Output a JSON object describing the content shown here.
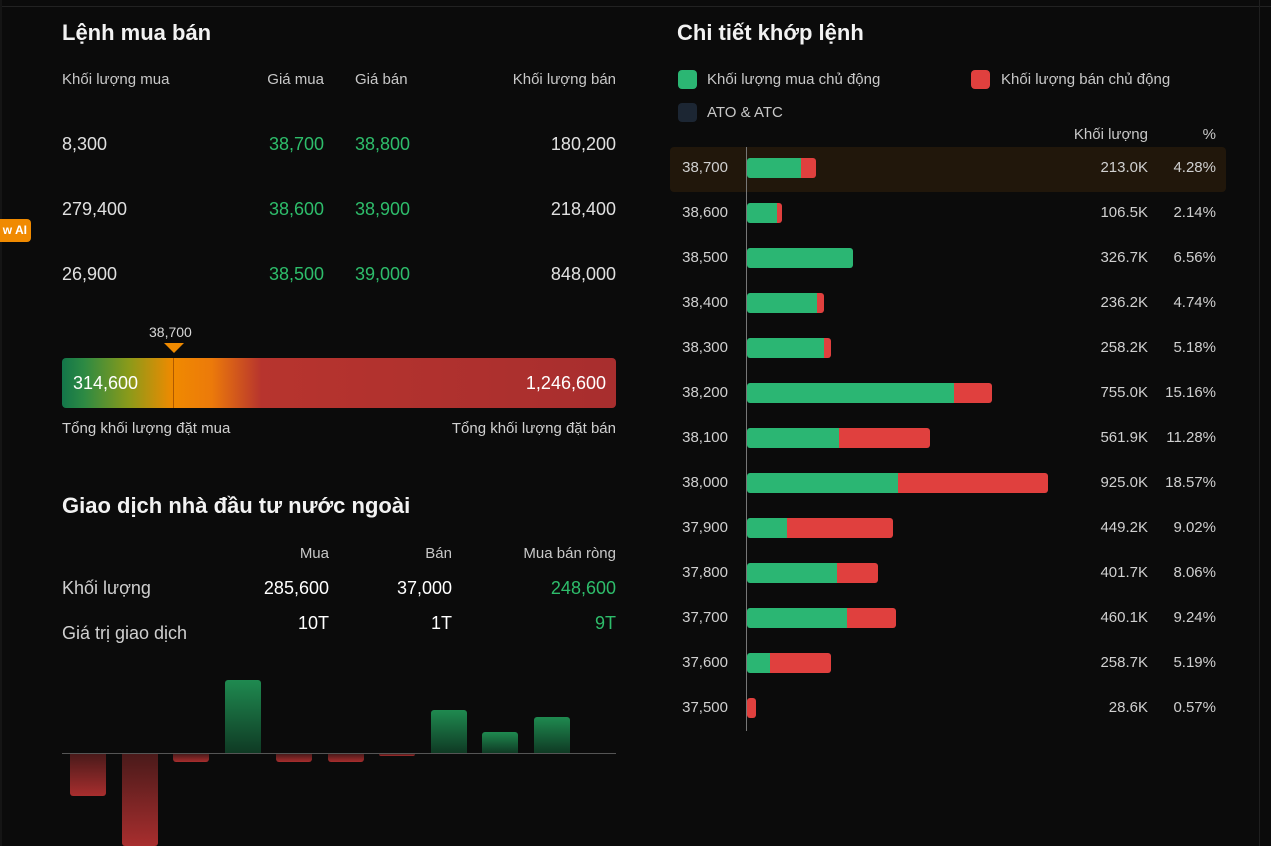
{
  "ai_badge": "w AI",
  "order_book": {
    "title": "Lệnh mua bán",
    "headers": {
      "buy_volume": "Khối lượng mua",
      "buy_price": "Giá mua",
      "sell_price": "Giá bán",
      "sell_volume": "Khối lượng bán"
    },
    "rows": [
      {
        "buy_volume": "8,300",
        "buy_price": "38,700",
        "sell_price": "38,800",
        "sell_volume": "180,200"
      },
      {
        "buy_volume": "279,400",
        "buy_price": "38,600",
        "sell_price": "38,900",
        "sell_volume": "218,400"
      },
      {
        "buy_volume": "26,900",
        "buy_price": "38,500",
        "sell_price": "39,000",
        "sell_volume": "848,000"
      }
    ],
    "marker_price": "38,700",
    "total_buy": "314,600",
    "total_sell": "1,246,600",
    "total_buy_label": "Tổng khối lượng đặt mua",
    "total_sell_label": "Tổng khối lượng đặt bán"
  },
  "foreign": {
    "title": "Giao dịch nhà đầu tư nước ngoài",
    "headers": {
      "buy": "Mua",
      "sell": "Bán",
      "net": "Mua bán ròng"
    },
    "volume": {
      "label": "Khối lượng",
      "buy": "285,600",
      "sell": "37,000",
      "net": "248,600"
    },
    "value": {
      "label": "Giá trị giao dịch",
      "buy": "10T",
      "sell": "1T",
      "net": "9T"
    },
    "chart_values": [
      -42,
      -92,
      -8,
      73,
      -8,
      -8,
      -2,
      43,
      21,
      36
    ]
  },
  "matched": {
    "title": "Chi tiết khớp lệnh",
    "legend": {
      "buy": "Khối lượng mua chủ động",
      "sell": "Khối lượng bán chủ động",
      "ato": "ATO & ATC"
    },
    "colors": {
      "buy": "#2bb673",
      "sell": "#e0403e",
      "ato": "#1c2633"
    },
    "headers": {
      "volume": "Khối lượng",
      "percent": "%"
    },
    "rows": [
      {
        "price": "38,700",
        "volume": "213.0K",
        "percent": "4.28%",
        "buy": 166,
        "sell": 47
      },
      {
        "price": "38,600",
        "volume": "106.5K",
        "percent": "2.14%",
        "buy": 93,
        "sell": 14
      },
      {
        "price": "38,500",
        "volume": "326.7K",
        "percent": "6.56%",
        "buy": 327,
        "sell": 0
      },
      {
        "price": "38,400",
        "volume": "236.2K",
        "percent": "4.74%",
        "buy": 216,
        "sell": 20
      },
      {
        "price": "38,300",
        "volume": "258.2K",
        "percent": "5.18%",
        "buy": 238,
        "sell": 20
      },
      {
        "price": "38,200",
        "volume": "755.0K",
        "percent": "15.16%",
        "buy": 636,
        "sell": 119
      },
      {
        "price": "38,100",
        "volume": "561.9K",
        "percent": "11.28%",
        "buy": 284,
        "sell": 278
      },
      {
        "price": "38,000",
        "volume": "925.0K",
        "percent": "18.57%",
        "buy": 465,
        "sell": 460
      },
      {
        "price": "37,900",
        "volume": "449.2K",
        "percent": "9.02%",
        "buy": 124,
        "sell": 325
      },
      {
        "price": "37,800",
        "volume": "401.7K",
        "percent": "8.06%",
        "buy": 278,
        "sell": 124
      },
      {
        "price": "37,700",
        "volume": "460.1K",
        "percent": "9.24%",
        "buy": 309,
        "sell": 151
      },
      {
        "price": "37,600",
        "volume": "258.7K",
        "percent": "5.19%",
        "buy": 71,
        "sell": 188
      },
      {
        "price": "37,500",
        "volume": "28.6K",
        "percent": "0.57%",
        "buy": 0,
        "sell": 29
      }
    ]
  }
}
